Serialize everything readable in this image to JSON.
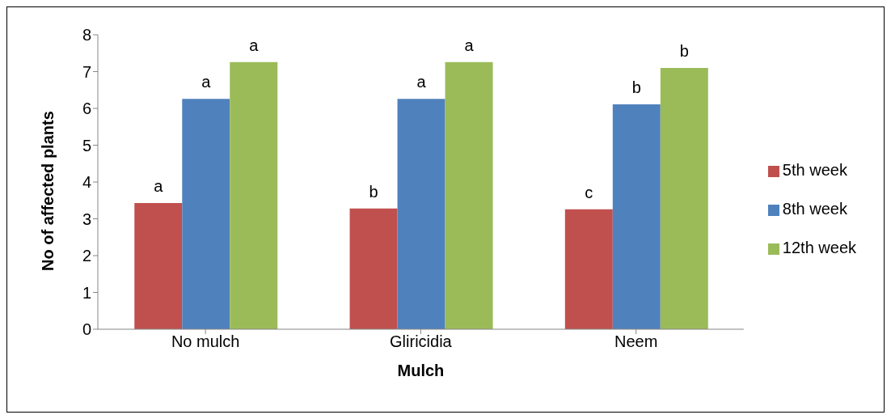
{
  "chart_data": {
    "type": "bar",
    "xlabel": "Mulch",
    "ylabel": "No of affected plants",
    "categories": [
      "No mulch",
      "Gliricidia",
      "Neem"
    ],
    "series": [
      {
        "name": "5th week",
        "color": "#c0504d",
        "values": [
          3.43,
          3.28,
          3.26
        ],
        "value_labels": [
          "a",
          "b",
          "c"
        ]
      },
      {
        "name": "8th week",
        "color": "#4f81bd",
        "values": [
          6.26,
          6.26,
          6.11
        ],
        "value_labels": [
          "a",
          "a",
          "b"
        ]
      },
      {
        "name": "12th week",
        "color": "#9bbb59",
        "values": [
          7.26,
          7.26,
          7.1
        ],
        "value_labels": [
          "a",
          "a",
          "b"
        ]
      }
    ],
    "ylim": [
      0,
      8
    ],
    "yticks": [
      0,
      1,
      2,
      3,
      4,
      5,
      6,
      7,
      8
    ],
    "grid": false,
    "legend": "right"
  }
}
